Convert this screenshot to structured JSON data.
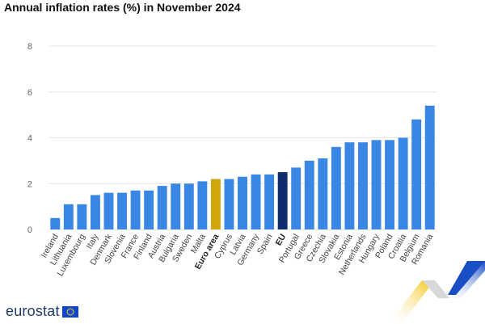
{
  "title": "Annual inflation rates (%) in November 2024",
  "brand": {
    "name": "eurostat",
    "flag_icon": "eu-flag-icon"
  },
  "colors": {
    "default": "#3a86e5",
    "euro_area": "#d1a60a",
    "eu": "#0f2d6e"
  },
  "chart_data": {
    "type": "bar",
    "title": "Annual inflation rates (%) in November 2024",
    "xlabel": "",
    "ylabel": "",
    "ylim": [
      0,
      8
    ],
    "yticks": [
      "0",
      "2",
      "4",
      "6",
      "8"
    ],
    "grid": true,
    "categories": [
      "Ireland",
      "Lithuania",
      "Luxembourg",
      "Italy",
      "Denmark",
      "Slovenia",
      "France",
      "Finland",
      "Austria",
      "Bulgaria",
      "Sweden",
      "Malta",
      "Euro area",
      "Cyprus",
      "Latvia",
      "Germany",
      "Spain",
      "EU",
      "Portugal",
      "Greece",
      "Czechia",
      "Slovakia",
      "Estonia",
      "Netherlands",
      "Hungary",
      "Poland",
      "Croatia",
      "Belgium",
      "Romania"
    ],
    "values": [
      0.5,
      1.1,
      1.1,
      1.5,
      1.6,
      1.6,
      1.7,
      1.7,
      1.9,
      2.0,
      2.0,
      2.1,
      2.2,
      2.2,
      2.3,
      2.4,
      2.4,
      2.5,
      2.7,
      3.0,
      3.1,
      3.6,
      3.8,
      3.8,
      3.9,
      3.9,
      4.0,
      4.8,
      5.4
    ],
    "highlights": {
      "Euro area": "euro_area",
      "EU": "eu"
    },
    "bold_labels": [
      "Euro area",
      "EU"
    ]
  }
}
